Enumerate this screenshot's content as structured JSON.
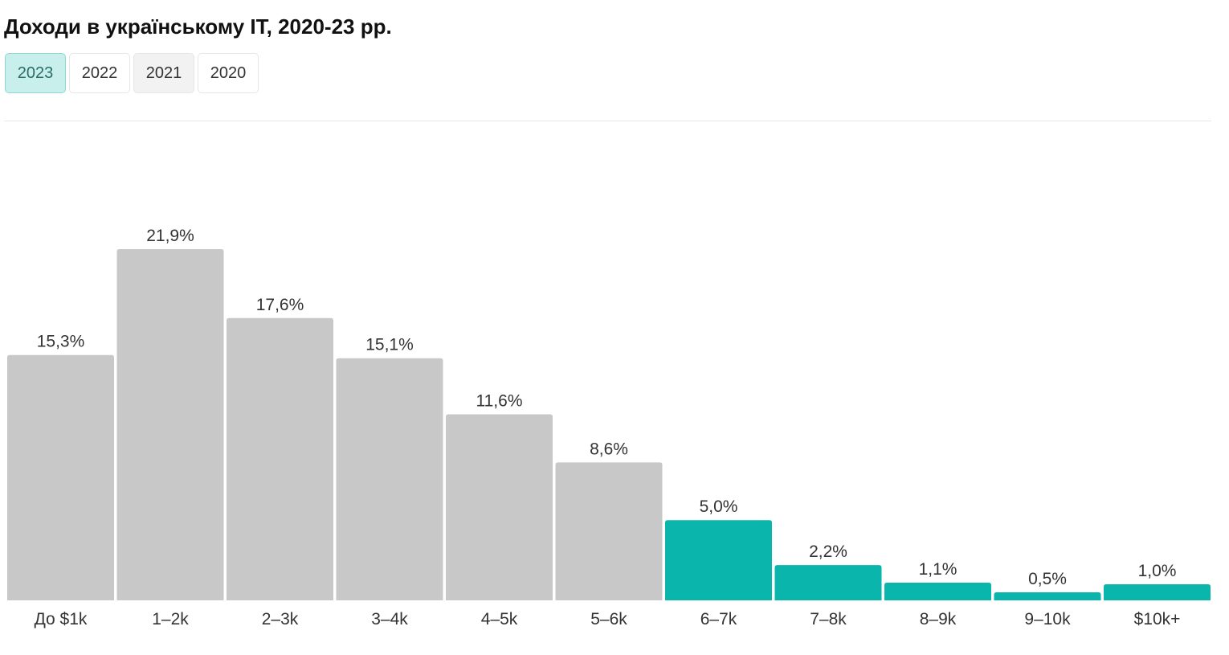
{
  "chart_data": {
    "type": "bar",
    "title": "Доходи в українському IT, 2020-23 рр.",
    "tabs": [
      {
        "label": "2023",
        "selected": true
      },
      {
        "label": "2022",
        "selected": false
      },
      {
        "label": "2021",
        "selected": false
      },
      {
        "label": "2020",
        "selected": false
      }
    ],
    "categories": [
      "До $1k",
      "1–2k",
      "2–3k",
      "3–4k",
      "4–5k",
      "5–6k",
      "6–7k",
      "7–8k",
      "8–9k",
      "9–10k",
      "$10k+"
    ],
    "values": [
      15.3,
      21.9,
      17.6,
      15.1,
      11.6,
      8.6,
      5.0,
      2.2,
      1.1,
      0.5,
      1.0
    ],
    "value_labels": [
      "15,3%",
      "21,9%",
      "17,6%",
      "15,1%",
      "11,6%",
      "8,6%",
      "5,0%",
      "2,2%",
      "1,1%",
      "0,5%",
      "1,0%"
    ],
    "colors": [
      "#c8c8c8",
      "#c8c8c8",
      "#c8c8c8",
      "#c8c8c8",
      "#c8c8c8",
      "#c8c8c8",
      "#0ab5ab",
      "#0ab5ab",
      "#0ab5ab",
      "#0ab5ab",
      "#0ab5ab"
    ]
  }
}
